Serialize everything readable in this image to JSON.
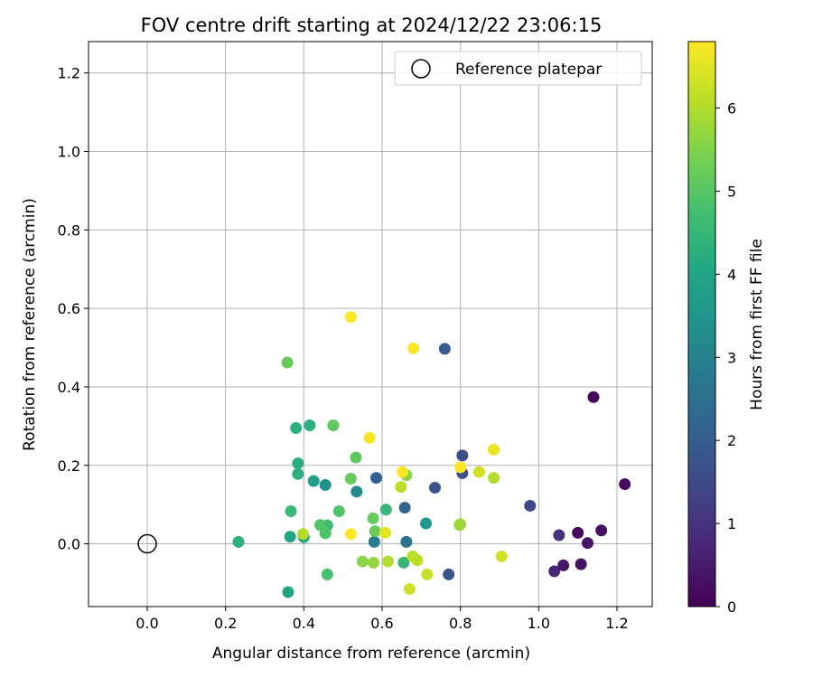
{
  "chart_data": {
    "type": "scatter",
    "title": "FOV centre drift starting at 2024/12/22 23:06:15",
    "xlabel": "Angular distance from reference (arcmin)",
    "ylabel": "Rotation from reference (arcmin)",
    "xlim": [
      -0.15,
      1.29
    ],
    "ylim": [
      -0.16,
      1.28
    ],
    "xticks": [
      0.0,
      0.2,
      0.4,
      0.6,
      0.8,
      1.0,
      1.2
    ],
    "xtick_labels": [
      "0.0",
      "0.2",
      "0.4",
      "0.6",
      "0.8",
      "1.0",
      "1.2"
    ],
    "yticks": [
      0.0,
      0.2,
      0.4,
      0.6,
      0.8,
      1.0,
      1.2
    ],
    "ytick_labels": [
      "0.0",
      "0.2",
      "0.4",
      "0.6",
      "0.8",
      "1.0",
      "1.2"
    ],
    "grid": true,
    "legend": {
      "position": "top-right",
      "entries": [
        "Reference platepar"
      ]
    },
    "reference_point": {
      "x": 0.0,
      "y": 0.0
    },
    "colorbar": {
      "label": "Hours from first FF file",
      "range": [
        0,
        6.8
      ],
      "ticks": [
        0,
        1,
        2,
        3,
        4,
        5,
        6
      ],
      "tick_labels": [
        "0",
        "1",
        "2",
        "3",
        "4",
        "5",
        "6"
      ],
      "colormap": "viridis"
    },
    "points": [
      {
        "x": 1.14,
        "y": 0.374,
        "c": 0.1
      },
      {
        "x": 1.22,
        "y": 0.152,
        "c": 0.2
      },
      {
        "x": 1.16,
        "y": 0.034,
        "c": 0.3
      },
      {
        "x": 1.1,
        "y": 0.028,
        "c": 0.2
      },
      {
        "x": 1.125,
        "y": 0.002,
        "c": 0.4
      },
      {
        "x": 1.108,
        "y": -0.052,
        "c": 0.3
      },
      {
        "x": 1.063,
        "y": -0.055,
        "c": 0.4
      },
      {
        "x": 1.04,
        "y": -0.07,
        "c": 0.7
      },
      {
        "x": 1.052,
        "y": 0.022,
        "c": 1.0
      },
      {
        "x": 0.978,
        "y": 0.097,
        "c": 1.5
      },
      {
        "x": 0.805,
        "y": 0.225,
        "c": 1.6
      },
      {
        "x": 0.805,
        "y": 0.18,
        "c": 1.7
      },
      {
        "x": 0.76,
        "y": 0.497,
        "c": 2.0
      },
      {
        "x": 0.735,
        "y": 0.143,
        "c": 1.8
      },
      {
        "x": 0.77,
        "y": -0.078,
        "c": 1.8
      },
      {
        "x": 0.658,
        "y": 0.092,
        "c": 2.2
      },
      {
        "x": 0.585,
        "y": 0.168,
        "c": 2.1
      },
      {
        "x": 0.662,
        "y": 0.005,
        "c": 2.6
      },
      {
        "x": 0.58,
        "y": 0.005,
        "c": 2.8
      },
      {
        "x": 0.535,
        "y": 0.133,
        "c": 3.2
      },
      {
        "x": 0.455,
        "y": 0.15,
        "c": 3.4
      },
      {
        "x": 0.712,
        "y": 0.052,
        "c": 3.6
      },
      {
        "x": 0.425,
        "y": 0.16,
        "c": 3.8
      },
      {
        "x": 0.365,
        "y": 0.018,
        "c": 4.0
      },
      {
        "x": 0.4,
        "y": 0.017,
        "c": 4.0
      },
      {
        "x": 0.36,
        "y": -0.123,
        "c": 4.0
      },
      {
        "x": 0.385,
        "y": 0.205,
        "c": 4.2
      },
      {
        "x": 0.385,
        "y": 0.178,
        "c": 4.3
      },
      {
        "x": 0.38,
        "y": 0.295,
        "c": 4.3
      },
      {
        "x": 0.415,
        "y": 0.302,
        "c": 4.3
      },
      {
        "x": 0.233,
        "y": 0.005,
        "c": 4.3
      },
      {
        "x": 0.61,
        "y": 0.087,
        "c": 4.5
      },
      {
        "x": 0.655,
        "y": -0.048,
        "c": 4.5
      },
      {
        "x": 0.367,
        "y": 0.083,
        "c": 4.6
      },
      {
        "x": 0.46,
        "y": 0.047,
        "c": 4.7
      },
      {
        "x": 0.442,
        "y": 0.048,
        "c": 4.9
      },
      {
        "x": 0.455,
        "y": 0.027,
        "c": 4.9
      },
      {
        "x": 0.46,
        "y": -0.078,
        "c": 4.8
      },
      {
        "x": 0.49,
        "y": 0.083,
        "c": 4.9
      },
      {
        "x": 0.475,
        "y": 0.302,
        "c": 5.1
      },
      {
        "x": 0.533,
        "y": 0.22,
        "c": 5.1
      },
      {
        "x": 0.52,
        "y": 0.166,
        "c": 5.2
      },
      {
        "x": 0.577,
        "y": 0.065,
        "c": 5.2
      },
      {
        "x": 0.582,
        "y": 0.032,
        "c": 5.2
      },
      {
        "x": 0.358,
        "y": 0.462,
        "c": 5.2
      },
      {
        "x": 0.662,
        "y": 0.175,
        "c": 5.6
      },
      {
        "x": 0.55,
        "y": -0.045,
        "c": 5.6
      },
      {
        "x": 0.578,
        "y": -0.048,
        "c": 5.7
      },
      {
        "x": 0.8,
        "y": 0.05,
        "c": 5.8
      },
      {
        "x": 0.798,
        "y": 0.048,
        "c": 5.8
      },
      {
        "x": 0.398,
        "y": 0.025,
        "c": 6.0
      },
      {
        "x": 0.615,
        "y": -0.045,
        "c": 6.0
      },
      {
        "x": 0.648,
        "y": 0.145,
        "c": 6.1
      },
      {
        "x": 0.678,
        "y": -0.032,
        "c": 6.1
      },
      {
        "x": 0.69,
        "y": -0.042,
        "c": 6.1
      },
      {
        "x": 0.715,
        "y": -0.078,
        "c": 6.2
      },
      {
        "x": 0.885,
        "y": 0.168,
        "c": 6.0
      },
      {
        "x": 0.848,
        "y": 0.183,
        "c": 6.3
      },
      {
        "x": 0.905,
        "y": -0.032,
        "c": 6.3
      },
      {
        "x": 0.67,
        "y": -0.115,
        "c": 6.3
      },
      {
        "x": 0.608,
        "y": 0.028,
        "c": 6.5
      },
      {
        "x": 0.885,
        "y": 0.24,
        "c": 6.6
      },
      {
        "x": 0.568,
        "y": 0.27,
        "c": 6.7
      },
      {
        "x": 0.52,
        "y": 0.578,
        "c": 6.8
      },
      {
        "x": 0.68,
        "y": 0.498,
        "c": 6.8
      },
      {
        "x": 0.52,
        "y": 0.025,
        "c": 6.8
      },
      {
        "x": 0.652,
        "y": 0.183,
        "c": 6.8
      },
      {
        "x": 0.8,
        "y": 0.195,
        "c": 6.8
      }
    ]
  }
}
